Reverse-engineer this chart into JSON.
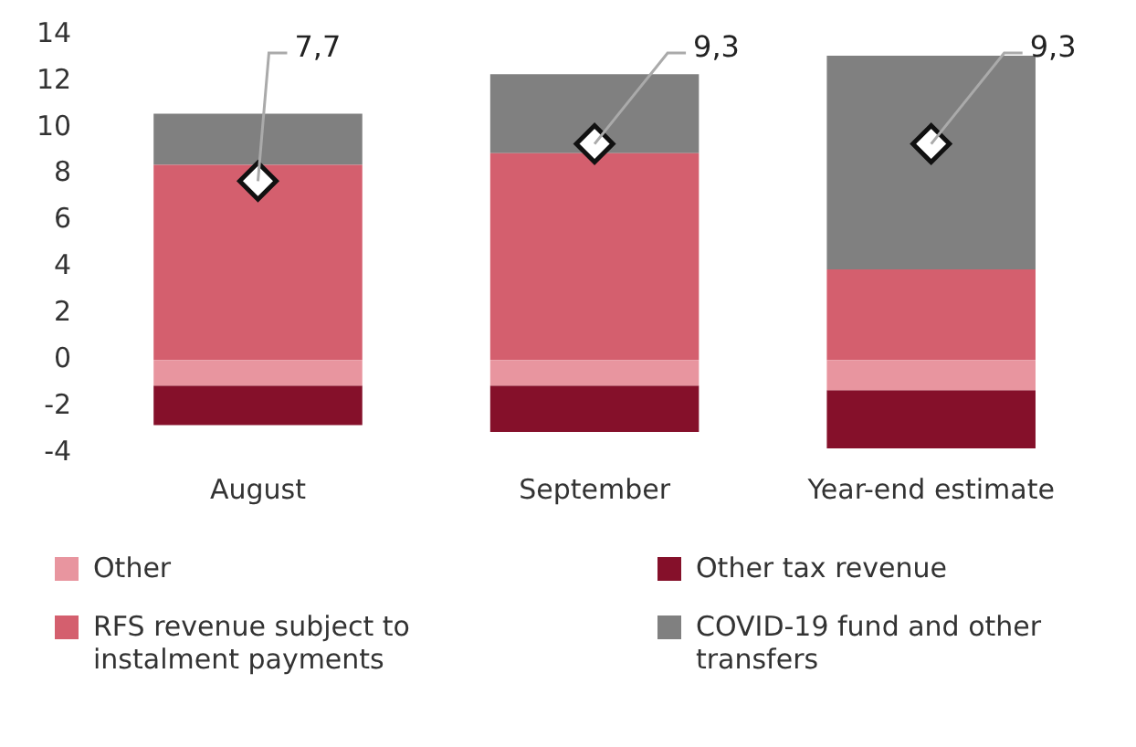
{
  "chart_data": {
    "type": "bar",
    "stacked": true,
    "categories": [
      "August",
      "September",
      "Year-end estimate"
    ],
    "series": [
      {
        "name": "Other",
        "color": "#e8959f",
        "values": [
          -1.1,
          -1.1,
          -1.3
        ]
      },
      {
        "name": "Other tax revenue",
        "color": "#85102a",
        "values": [
          -1.7,
          -2.0,
          -2.5
        ]
      },
      {
        "name": "RFS revenue subject to instalment payments",
        "color": "#d45f6e",
        "values": [
          8.4,
          8.9,
          3.9
        ]
      },
      {
        "name": "COVID-19 fund and other transfers",
        "color": "#808080",
        "values": [
          2.2,
          3.4,
          9.2
        ]
      },
      {
        "type": "scatter",
        "marker": "diamond",
        "color": "#ffffff",
        "x": [
          "August",
          "September",
          "Year-end estimate"
        ],
        "values": [
          7.7,
          9.3,
          9.3
        ],
        "value_labels": [
          "7,7",
          "9,3",
          "9,3"
        ]
      }
    ],
    "ylim": [
      -4,
      14
    ],
    "yticks": [
      -4,
      -2,
      0,
      2,
      4,
      6,
      8,
      10,
      12,
      14
    ],
    "grid": false,
    "legend": "bottom"
  }
}
